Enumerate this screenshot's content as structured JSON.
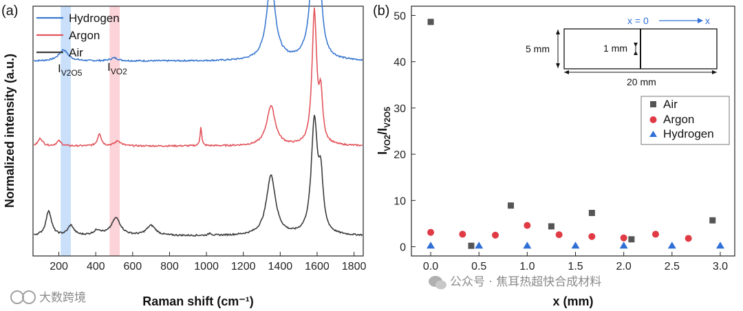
{
  "panel_a": "(a)",
  "panel_b": "(b)",
  "watermark_left": "大数跨境",
  "watermark_right": "公众号 · 焦耳热超快合成材料",
  "chart_data": [
    {
      "type": "line",
      "title": "",
      "xlabel": "Raman shift (cm⁻¹)",
      "ylabel": "Normalized intensity (a.u.)",
      "xlim": [
        60,
        1850
      ],
      "xticks": [
        200,
        400,
        600,
        800,
        1000,
        1200,
        1400,
        1600,
        1800
      ],
      "legend": [
        "Hydrogen",
        "Argon",
        "Air"
      ],
      "band_labels": [
        {
          "base": "I",
          "sub": "V2O5",
          "range": [
            210,
            265
          ],
          "color": "#c9dffa"
        },
        {
          "base": "I",
          "sub": "VO2",
          "range": [
            475,
            530
          ],
          "color": "#fbd3d8"
        }
      ],
      "series": [
        {
          "name": "Hydrogen",
          "color": "#3a78d0",
          "offset": 0.78,
          "peaks": [
            [
              225,
              0.045,
              30
            ],
            [
              500,
              0.012,
              25
            ],
            [
              1350,
              0.32,
              28
            ],
            [
              1585,
              0.5,
              24
            ],
            [
              1620,
              0.12,
              15
            ]
          ]
        },
        {
          "name": "Argon",
          "color": "#e2535b",
          "offset": 0.44,
          "peaks": [
            [
              100,
              0.03,
              15
            ],
            [
              200,
              0.02,
              15
            ],
            [
              420,
              0.05,
              12
            ],
            [
              520,
              0.02,
              20
            ],
            [
              970,
              0.08,
              5
            ],
            [
              1350,
              0.16,
              28
            ],
            [
              1585,
              0.53,
              15
            ],
            [
              1620,
              0.18,
              12
            ]
          ]
        },
        {
          "name": "Air",
          "color": "#3a3a3a",
          "offset": 0.08,
          "peaks": [
            [
              145,
              0.1,
              18
            ],
            [
              265,
              0.04,
              20
            ],
            [
              410,
              0.02,
              25
            ],
            [
              510,
              0.07,
              30
            ],
            [
              700,
              0.04,
              30
            ],
            [
              1020,
              0.01,
              8
            ],
            [
              1350,
              0.24,
              30
            ],
            [
              1585,
              0.45,
              20
            ],
            [
              1620,
              0.2,
              15
            ]
          ]
        }
      ]
    },
    {
      "type": "scatter",
      "title": "",
      "xlabel": "x (mm)",
      "ylabel_base": "I",
      "ylabel_sub1": "VO2",
      "ylabel_sub2": "V2O5",
      "xlim": [
        -0.2,
        3.15
      ],
      "ylim": [
        -2,
        52
      ],
      "xticks": [
        "0.0",
        "0.5",
        "1.0",
        "1.5",
        "2.0",
        "2.5",
        "3.0"
      ],
      "yticks": [
        0,
        10,
        20,
        30,
        40,
        50
      ],
      "series": [
        {
          "name": "Air",
          "color": "#555555",
          "marker": "square",
          "x": [
            0.0,
            0.42,
            0.83,
            1.25,
            1.67,
            2.08,
            2.92
          ],
          "y": [
            48.6,
            0.2,
            8.9,
            4.4,
            7.3,
            1.6,
            5.7
          ]
        },
        {
          "name": "Argon",
          "color": "#e03a45",
          "marker": "circle",
          "x": [
            0.0,
            0.33,
            0.67,
            1.0,
            1.33,
            1.67,
            2.0,
            2.33,
            2.67
          ],
          "y": [
            3.1,
            2.7,
            2.5,
            4.6,
            2.6,
            2.2,
            1.9,
            2.7,
            1.8
          ]
        },
        {
          "name": "Hydrogen",
          "color": "#2f6fd6",
          "marker": "triangle",
          "x": [
            0.0,
            0.5,
            1.0,
            1.5,
            2.0,
            2.5,
            3.0
          ],
          "y": [
            0.2,
            0.2,
            0.2,
            0.2,
            0.2,
            0.2,
            0.2
          ]
        }
      ],
      "inset": {
        "origin_label": "x = 0",
        "axis_label": "x",
        "height_label": "5 mm",
        "gap_label": "1 mm",
        "width_label": "20 mm"
      }
    }
  ]
}
